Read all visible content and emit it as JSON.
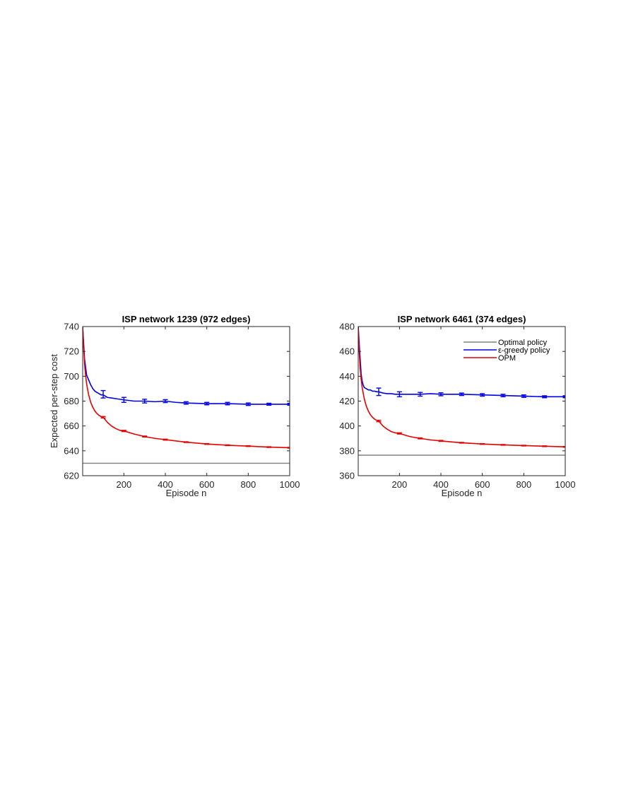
{
  "chart_data": [
    {
      "type": "line",
      "title": "ISP network 1239 (972 edges)",
      "xlabel": "Episode n",
      "ylabel": "Expected per-step cost",
      "xlim": [
        1,
        1000
      ],
      "ylim": [
        620,
        740
      ],
      "xticks": [
        200,
        400,
        600,
        800,
        1000
      ],
      "yticks": [
        620,
        640,
        660,
        680,
        700,
        720,
        740
      ],
      "grid": false,
      "legend": null,
      "series": [
        {
          "name": "Optimal policy",
          "color": "#808080",
          "x": [
            1,
            1000
          ],
          "y": [
            630,
            630
          ]
        },
        {
          "name": "ε-greedy policy",
          "color": "#0000e6",
          "x": [
            1,
            10,
            20,
            30,
            40,
            50,
            60,
            70,
            80,
            90,
            100,
            120,
            140,
            160,
            180,
            200,
            250,
            300,
            350,
            400,
            450,
            500,
            600,
            700,
            800,
            900,
            1000
          ],
          "y": [
            740,
            714,
            701,
            697,
            693,
            690,
            688,
            687,
            686,
            685,
            685,
            683,
            682.5,
            682,
            681.5,
            681,
            680,
            680,
            679.5,
            680,
            679,
            678.5,
            678,
            678,
            677.5,
            677.5,
            677.5
          ],
          "error_x": [
            100,
            200,
            300,
            400,
            500,
            600,
            700,
            800,
            900,
            1000
          ],
          "error_y": [
            685.5,
            681,
            680,
            680,
            678.5,
            678,
            678,
            677.5,
            677.5,
            677.5
          ],
          "error_half": [
            3,
            2,
            1.5,
            1.2,
            1,
            1,
            1,
            1,
            0.8,
            0.8
          ]
        },
        {
          "name": "OPM",
          "color": "#e60000",
          "x": [
            1,
            5,
            10,
            15,
            20,
            30,
            40,
            50,
            60,
            70,
            80,
            90,
            100,
            120,
            140,
            160,
            180,
            200,
            250,
            300,
            350,
            400,
            450,
            500,
            600,
            700,
            800,
            900,
            1000
          ],
          "y": [
            740,
            725,
            710,
            701,
            694,
            685,
            679,
            675,
            672,
            670,
            668.5,
            667.5,
            667,
            663,
            660,
            658,
            656.5,
            656,
            653.5,
            651.5,
            650,
            649,
            648,
            647,
            645.5,
            644.5,
            643.8,
            643,
            642.5
          ],
          "error_x": [
            100,
            200,
            300,
            400,
            500,
            600,
            700,
            800,
            900,
            1000
          ],
          "error_y": [
            667,
            656,
            651.5,
            649,
            647,
            645.5,
            644.5,
            643.8,
            643,
            642.5
          ],
          "error_half": [
            0.6,
            0.5,
            0.4,
            0.4,
            0.3,
            0.3,
            0.3,
            0.3,
            0.3,
            0.3
          ]
        }
      ]
    },
    {
      "type": "line",
      "title": "ISP network 6461 (374 edges)",
      "xlabel": "Episode n",
      "ylabel": "",
      "xlim": [
        1,
        1000
      ],
      "ylim": [
        360,
        480
      ],
      "xticks": [
        200,
        400,
        600,
        800,
        1000
      ],
      "yticks": [
        360,
        380,
        400,
        420,
        440,
        460,
        480
      ],
      "grid": false,
      "legend": "top-right",
      "series": [
        {
          "name": "Optimal policy",
          "color": "#808080",
          "x": [
            1,
            1000
          ],
          "y": [
            376.5,
            376.5
          ]
        },
        {
          "name": "ε-greedy policy",
          "color": "#0000e6",
          "x": [
            1,
            8,
            15,
            20,
            25,
            30,
            40,
            50,
            60,
            70,
            80,
            90,
            100,
            120,
            140,
            160,
            180,
            200,
            250,
            300,
            350,
            400,
            450,
            500,
            600,
            700,
            800,
            900,
            1000
          ],
          "y": [
            480,
            460,
            442,
            436,
            433,
            431,
            430,
            429,
            429,
            428,
            428,
            427.5,
            427.5,
            426.5,
            426,
            426,
            425.5,
            425.5,
            425.5,
            425.5,
            426,
            425.5,
            425.5,
            425.5,
            425,
            424.5,
            424,
            423.5,
            423.5
          ],
          "error_x": [
            100,
            200,
            300,
            400,
            500,
            600,
            700,
            800,
            900,
            1000
          ],
          "error_y": [
            427.5,
            425.5,
            425.5,
            425.5,
            425.5,
            425,
            424.5,
            424,
            423.5,
            423.5
          ],
          "error_half": [
            3,
            2,
            1.5,
            1.2,
            1,
            1,
            1,
            1,
            0.8,
            0.8
          ]
        },
        {
          "name": "OPM",
          "color": "#e60000",
          "x": [
            1,
            5,
            10,
            15,
            20,
            30,
            40,
            50,
            60,
            70,
            80,
            90,
            100,
            120,
            140,
            160,
            180,
            200,
            250,
            300,
            350,
            400,
            450,
            500,
            600,
            700,
            800,
            900,
            1000
          ],
          "y": [
            480,
            462,
            447,
            438,
            431,
            422,
            416,
            412,
            409,
            407,
            405.5,
            404.5,
            404,
            400,
            397.5,
            395.5,
            394.5,
            394,
            391.5,
            390,
            388.8,
            388,
            387.2,
            386.5,
            385.5,
            384.8,
            384.2,
            383.7,
            383.2
          ],
          "error_x": [
            100,
            200,
            300,
            400,
            500,
            600,
            700,
            800,
            900,
            1000
          ],
          "error_y": [
            404,
            394,
            390,
            388,
            386.5,
            385.5,
            384.8,
            384.2,
            383.7,
            383.2
          ],
          "error_half": [
            0.6,
            0.5,
            0.4,
            0.4,
            0.3,
            0.3,
            0.3,
            0.3,
            0.3,
            0.3
          ]
        }
      ]
    }
  ]
}
